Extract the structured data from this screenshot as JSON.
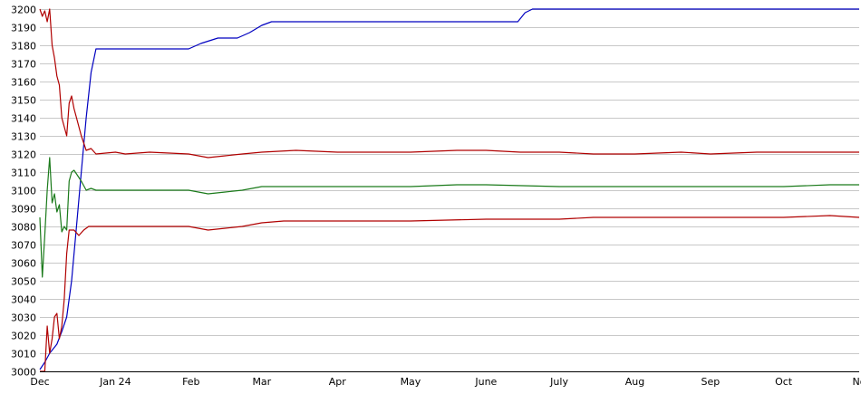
{
  "chart_data": {
    "type": "line",
    "title": "",
    "xlabel": "",
    "ylabel": "",
    "ylim": [
      3000,
      3200
    ],
    "xlim": [
      "2023-12-01",
      "2024-11-01"
    ],
    "grid": "horizontal",
    "y_ticks": [
      "3000",
      "3010",
      "3020",
      "3030",
      "3040",
      "3050",
      "3060",
      "3070",
      "3080",
      "3090",
      "3100",
      "3110",
      "3120",
      "3130",
      "3140",
      "3150",
      "3160",
      "3170",
      "3180",
      "3190",
      "3200"
    ],
    "x_ticks": [
      {
        "date": "2023-12-01",
        "label": "Dec"
      },
      {
        "date": "2024-01-01",
        "label": "Jan 24"
      },
      {
        "date": "2024-02-01",
        "label": "Feb"
      },
      {
        "date": "2024-03-01",
        "label": "Mar"
      },
      {
        "date": "2024-04-01",
        "label": "Apr"
      },
      {
        "date": "2024-05-01",
        "label": "May"
      },
      {
        "date": "2024-06-01",
        "label": "June"
      },
      {
        "date": "2024-07-01",
        "label": "July"
      },
      {
        "date": "2024-08-01",
        "label": "Aug"
      },
      {
        "date": "2024-09-01",
        "label": "Sep"
      },
      {
        "date": "2024-10-01",
        "label": "Oct"
      },
      {
        "date": "2024-11-01",
        "label": "No"
      }
    ],
    "series": [
      {
        "color": "#0000c0",
        "points": [
          [
            "2023-12-01",
            3001
          ],
          [
            "2023-12-03",
            3005
          ],
          [
            "2023-12-05",
            3010
          ],
          [
            "2023-12-08",
            3015
          ],
          [
            "2023-12-10",
            3022
          ],
          [
            "2023-12-12",
            3030
          ],
          [
            "2023-12-14",
            3050
          ],
          [
            "2023-12-16",
            3080
          ],
          [
            "2023-12-18",
            3110
          ],
          [
            "2023-12-20",
            3140
          ],
          [
            "2023-12-22",
            3165
          ],
          [
            "2023-12-24",
            3178
          ],
          [
            "2024-01-10",
            3178
          ],
          [
            "2024-01-31",
            3178
          ],
          [
            "2024-02-05",
            3181
          ],
          [
            "2024-02-12",
            3184
          ],
          [
            "2024-02-20",
            3184
          ],
          [
            "2024-02-25",
            3187
          ],
          [
            "2024-03-01",
            3191
          ],
          [
            "2024-03-05",
            3193
          ],
          [
            "2024-04-01",
            3193
          ],
          [
            "2024-05-01",
            3193
          ],
          [
            "2024-06-01",
            3193
          ],
          [
            "2024-06-14",
            3193
          ],
          [
            "2024-06-17",
            3198
          ],
          [
            "2024-06-20",
            3200
          ],
          [
            "2024-07-15",
            3200
          ],
          [
            "2024-09-01",
            3200
          ],
          [
            "2024-11-01",
            3200
          ]
        ]
      },
      {
        "color": "#b00000",
        "points": [
          [
            "2023-12-01",
            3200
          ],
          [
            "2023-12-02",
            3196
          ],
          [
            "2023-12-03",
            3199
          ],
          [
            "2023-12-04",
            3193
          ],
          [
            "2023-12-05",
            3200
          ],
          [
            "2023-12-06",
            3180
          ],
          [
            "2023-12-07",
            3173
          ],
          [
            "2023-12-08",
            3163
          ],
          [
            "2023-12-09",
            3158
          ],
          [
            "2023-12-10",
            3140
          ],
          [
            "2023-12-11",
            3135
          ],
          [
            "2023-12-12",
            3130
          ],
          [
            "2023-12-13",
            3148
          ],
          [
            "2023-12-14",
            3152
          ],
          [
            "2023-12-15",
            3145
          ],
          [
            "2023-12-16",
            3140
          ],
          [
            "2023-12-18",
            3130
          ],
          [
            "2023-12-20",
            3122
          ],
          [
            "2023-12-22",
            3123
          ],
          [
            "2023-12-24",
            3120
          ],
          [
            "2024-01-01",
            3121
          ],
          [
            "2024-01-05",
            3120
          ],
          [
            "2024-01-15",
            3121
          ],
          [
            "2024-01-31",
            3120
          ],
          [
            "2024-02-08",
            3118
          ],
          [
            "2024-02-15",
            3119
          ],
          [
            "2024-02-22",
            3120
          ],
          [
            "2024-03-01",
            3121
          ],
          [
            "2024-03-15",
            3122
          ],
          [
            "2024-04-01",
            3121
          ],
          [
            "2024-05-01",
            3121
          ],
          [
            "2024-05-20",
            3122
          ],
          [
            "2024-06-01",
            3122
          ],
          [
            "2024-06-15",
            3121
          ],
          [
            "2024-07-01",
            3121
          ],
          [
            "2024-07-15",
            3120
          ],
          [
            "2024-08-01",
            3120
          ],
          [
            "2024-08-20",
            3121
          ],
          [
            "2024-09-01",
            3120
          ],
          [
            "2024-09-20",
            3121
          ],
          [
            "2024-10-01",
            3121
          ],
          [
            "2024-10-20",
            3121
          ],
          [
            "2024-11-01",
            3121
          ]
        ]
      },
      {
        "color": "#1a7a1a",
        "points": [
          [
            "2023-12-01",
            3085
          ],
          [
            "2023-12-02",
            3052
          ],
          [
            "2023-12-03",
            3075
          ],
          [
            "2023-12-04",
            3100
          ],
          [
            "2023-12-05",
            3118
          ],
          [
            "2023-12-06",
            3093
          ],
          [
            "2023-12-07",
            3098
          ],
          [
            "2023-12-08",
            3088
          ],
          [
            "2023-12-09",
            3092
          ],
          [
            "2023-12-10",
            3077
          ],
          [
            "2023-12-11",
            3080
          ],
          [
            "2023-12-12",
            3078
          ],
          [
            "2023-12-13",
            3105
          ],
          [
            "2023-12-14",
            3110
          ],
          [
            "2023-12-15",
            3111
          ],
          [
            "2023-12-16",
            3109
          ],
          [
            "2023-12-18",
            3105
          ],
          [
            "2023-12-20",
            3100
          ],
          [
            "2023-12-22",
            3101
          ],
          [
            "2023-12-24",
            3100
          ],
          [
            "2024-01-10",
            3100
          ],
          [
            "2024-01-31",
            3100
          ],
          [
            "2024-02-08",
            3098
          ],
          [
            "2024-02-15",
            3099
          ],
          [
            "2024-02-22",
            3100
          ],
          [
            "2024-03-01",
            3102
          ],
          [
            "2024-03-15",
            3102
          ],
          [
            "2024-04-01",
            3102
          ],
          [
            "2024-05-01",
            3102
          ],
          [
            "2024-05-20",
            3103
          ],
          [
            "2024-06-01",
            3103
          ],
          [
            "2024-07-01",
            3102
          ],
          [
            "2024-08-01",
            3102
          ],
          [
            "2024-09-01",
            3102
          ],
          [
            "2024-10-01",
            3102
          ],
          [
            "2024-10-20",
            3103
          ],
          [
            "2024-11-01",
            3103
          ]
        ]
      },
      {
        "color": "#b00000",
        "points": [
          [
            "2023-12-01",
            3000
          ],
          [
            "2023-12-02",
            3000
          ],
          [
            "2023-12-03",
            3000
          ],
          [
            "2023-12-04",
            3025
          ],
          [
            "2023-12-05",
            3010
          ],
          [
            "2023-12-06",
            3018
          ],
          [
            "2023-12-07",
            3030
          ],
          [
            "2023-12-08",
            3032
          ],
          [
            "2023-12-09",
            3018
          ],
          [
            "2023-12-10",
            3025
          ],
          [
            "2023-12-11",
            3040
          ],
          [
            "2023-12-12",
            3065
          ],
          [
            "2023-12-13",
            3078
          ],
          [
            "2023-12-15",
            3078
          ],
          [
            "2023-12-17",
            3075
          ],
          [
            "2023-12-19",
            3078
          ],
          [
            "2023-12-21",
            3080
          ],
          [
            "2023-12-24",
            3080
          ],
          [
            "2024-01-10",
            3080
          ],
          [
            "2024-01-31",
            3080
          ],
          [
            "2024-02-08",
            3078
          ],
          [
            "2024-02-15",
            3079
          ],
          [
            "2024-02-22",
            3080
          ],
          [
            "2024-03-01",
            3082
          ],
          [
            "2024-03-10",
            3083
          ],
          [
            "2024-04-01",
            3083
          ],
          [
            "2024-05-01",
            3083
          ],
          [
            "2024-06-01",
            3084
          ],
          [
            "2024-07-01",
            3084
          ],
          [
            "2024-07-15",
            3085
          ],
          [
            "2024-08-01",
            3085
          ],
          [
            "2024-09-01",
            3085
          ],
          [
            "2024-10-01",
            3085
          ],
          [
            "2024-10-20",
            3086
          ],
          [
            "2024-11-01",
            3085
          ]
        ]
      }
    ]
  }
}
